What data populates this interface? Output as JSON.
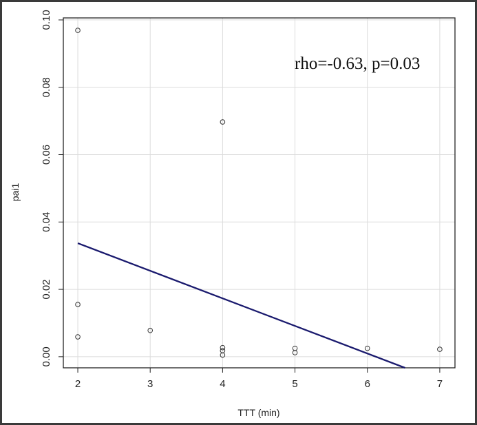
{
  "chart_data": {
    "type": "scatter",
    "title": "",
    "xlabel": "TTT (min)",
    "ylabel": "pai1",
    "xlim": [
      1.8,
      7.21
    ],
    "ylim": [
      -0.0033,
      0.1006
    ],
    "xticks": [
      2,
      3,
      4,
      5,
      6,
      7
    ],
    "yticks": [
      0.0,
      0.02,
      0.04,
      0.06,
      0.08,
      0.1
    ],
    "ytick_labels": [
      "0.00",
      "0.02",
      "0.04",
      "0.06",
      "0.08",
      "0.10"
    ],
    "grid": true,
    "points": [
      {
        "x": 2,
        "y": 0.0969
      },
      {
        "x": 2,
        "y": 0.0155
      },
      {
        "x": 2,
        "y": 0.0059
      },
      {
        "x": 3,
        "y": 0.0078
      },
      {
        "x": 4,
        "y": 0.0697
      },
      {
        "x": 4,
        "y": 0.0027
      },
      {
        "x": 4,
        "y": 0.0018
      },
      {
        "x": 4,
        "y": 0.0005
      },
      {
        "x": 5,
        "y": 0.0025
      },
      {
        "x": 5,
        "y": 0.0012
      },
      {
        "x": 6,
        "y": 0.0025
      },
      {
        "x": 7,
        "y": 0.0022
      }
    ],
    "regression_line": {
      "x": [
        2,
        6.52
      ],
      "y": [
        0.0337,
        -0.0033
      ],
      "color": "#1a1a6e"
    },
    "annotation": "rho=-0.63, p=0.03",
    "colors": {
      "points": "#333333",
      "grid": "#dcdcdc",
      "axis": "#222222",
      "frame": "#3a3a3a"
    }
  }
}
